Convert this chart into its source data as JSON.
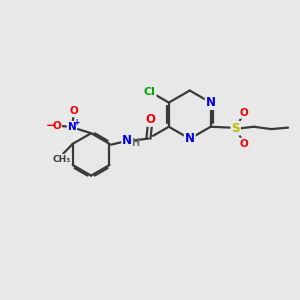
{
  "bg_color": "#e8e8e8",
  "bond_color": "#3a3a3a",
  "bond_width": 1.6,
  "atom_colors": {
    "N": "#0000ee",
    "O": "#ee0000",
    "S": "#bbbb00",
    "Cl": "#00aa00",
    "C": "#3a3a3a",
    "H": "#707070"
  },
  "font_size": 8.5,
  "fig_size": [
    3.0,
    3.0
  ],
  "dpi": 100
}
